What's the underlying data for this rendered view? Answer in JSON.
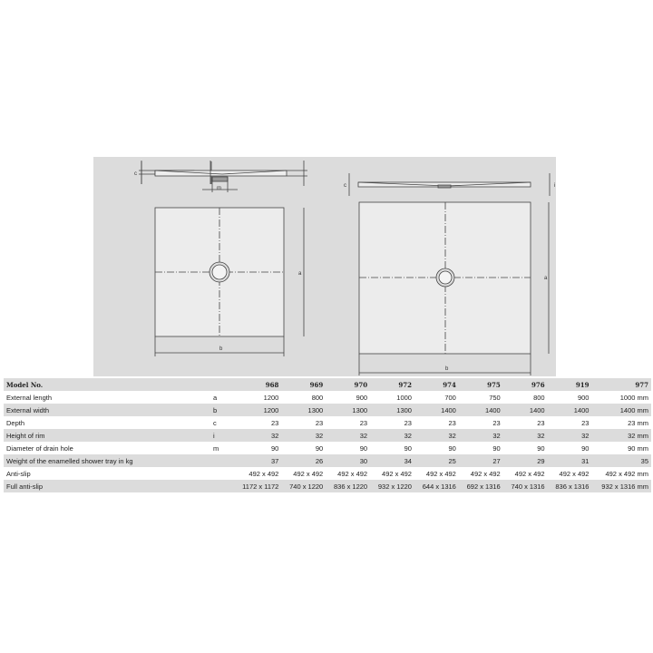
{
  "diagram": {
    "labels": {
      "c": "c",
      "i": "i",
      "m": "m",
      "a": "a",
      "b": "b"
    }
  },
  "table": {
    "header": {
      "label": "Model No.",
      "models": [
        "968",
        "969",
        "970",
        "972",
        "974",
        "975",
        "976",
        "919",
        "977"
      ]
    },
    "rows": [
      {
        "label": "External length",
        "key": "a",
        "values": [
          "1200",
          "800",
          "900",
          "1000",
          "700",
          "750",
          "800",
          "900",
          "1000 mm"
        ]
      },
      {
        "label": "External width",
        "key": "b",
        "values": [
          "1200",
          "1300",
          "1300",
          "1300",
          "1400",
          "1400",
          "1400",
          "1400",
          "1400 mm"
        ]
      },
      {
        "label": "Depth",
        "key": "c",
        "values": [
          "23",
          "23",
          "23",
          "23",
          "23",
          "23",
          "23",
          "23",
          "23 mm"
        ]
      },
      {
        "label": "Height of rim",
        "key": "i",
        "values": [
          "32",
          "32",
          "32",
          "32",
          "32",
          "32",
          "32",
          "32",
          "32 mm"
        ]
      },
      {
        "label": "Diameter of drain hole",
        "key": "m",
        "values": [
          "90",
          "90",
          "90",
          "90",
          "90",
          "90",
          "90",
          "90",
          "90 mm"
        ]
      },
      {
        "label": "Weight of the enamelled shower tray in kg",
        "key": "",
        "values": [
          "37",
          "26",
          "30",
          "34",
          "25",
          "27",
          "29",
          "31",
          "35"
        ]
      },
      {
        "label": "Anti-slip",
        "key": "",
        "values": [
          "492 x 492",
          "492 x 492",
          "492 x 492",
          "492 x 492",
          "492 x 492",
          "492 x 492",
          "492 x 492",
          "492 x 492",
          "492 x 492 mm"
        ]
      },
      {
        "label": "Full anti-slip",
        "key": "",
        "values": [
          "1172 x 1172",
          "740 x 1220",
          "836 x 1220",
          "932 x 1220",
          "644 x 1316",
          "692 x 1316",
          "740 x 1316",
          "836 x 1316",
          "932 x 1316 mm"
        ]
      }
    ]
  }
}
